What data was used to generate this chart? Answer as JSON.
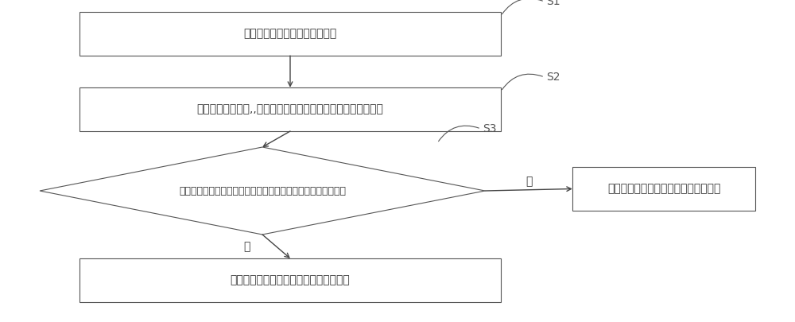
{
  "bg_color": "#ffffff",
  "box_color": "#ffffff",
  "box_edge_color": "#555555",
  "arrow_color": "#444444",
  "text_color": "#333333",
  "label_color": "#555555",
  "font_size": 10,
  "small_font_size": 9,
  "label_font_size": 10,
  "step_labels": [
    "S1",
    "S2",
    "S3"
  ],
  "box1_text": "获取预设扫描范围内的点云数据",
  "box2_text": "通过预设识别算法,,确认获取的点云数据中的预设路面点云数据",
  "diamond_text": "判断预设路面点云法向方向的直线上的点云是否为预设均匀点云",
  "box4_text": "确定当前预设扫描范围内没有地面障碍物",
  "box5_text": "确定当前预设扫描范围内有地面障碍物",
  "yes_label": "是",
  "no_label": "否",
  "figwidth": 10.0,
  "figheight": 4.05,
  "dpi": 100
}
